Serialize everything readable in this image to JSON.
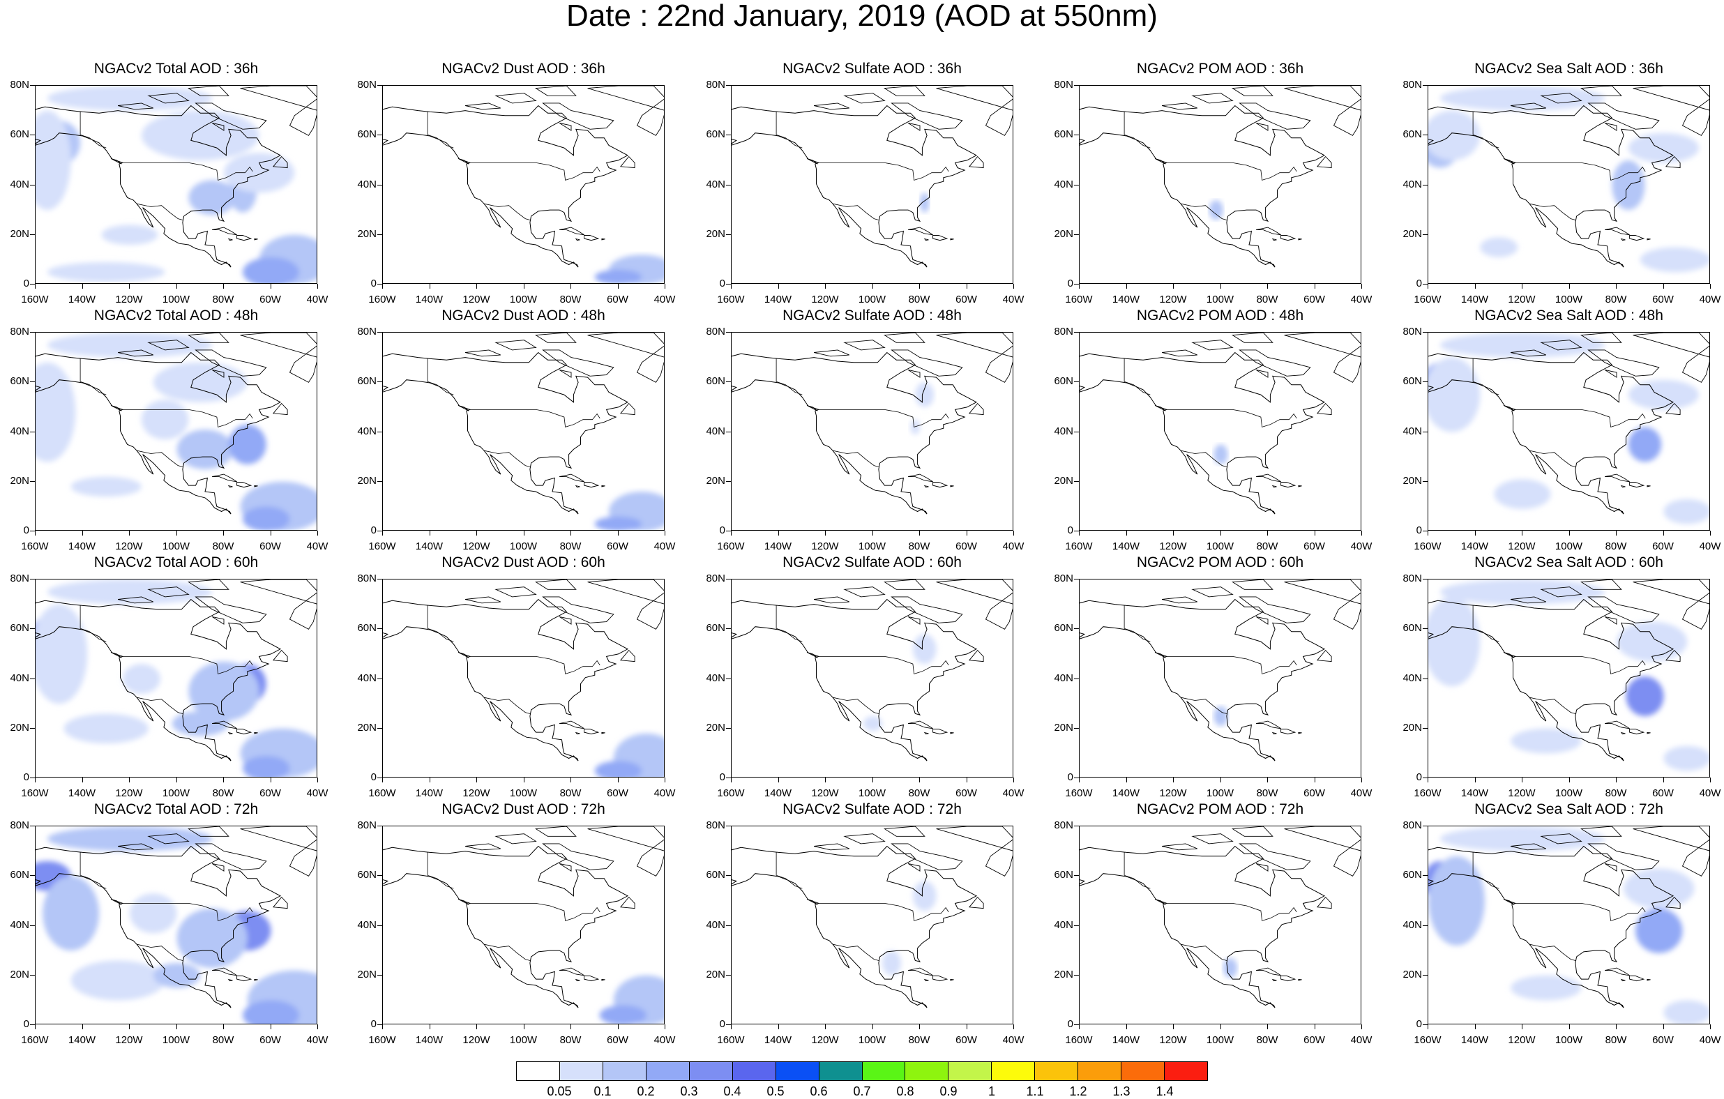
{
  "title": "Date : 22nd January, 2019 (AOD at 550nm)",
  "x_ticks": [
    "160W",
    "140W",
    "120W",
    "100W",
    "80W",
    "60W",
    "40W"
  ],
  "y_ticks": [
    "80N",
    "60N",
    "40N",
    "20N",
    "0"
  ],
  "columns": [
    {
      "key": "total",
      "titles": [
        "NGACv2 Total AOD : 36h",
        "NGACv2 Total AOD : 48h",
        "NGACv2 Total AOD : 60h",
        "NGACv2 Total AOD : 72h"
      ]
    },
    {
      "key": "dust",
      "titles": [
        "NGACv2 Dust AOD : 36h",
        "NGACv2 Dust AOD : 48h",
        "NGACv2 Dust AOD : 60h",
        "NGACv2 Dust AOD : 72h"
      ]
    },
    {
      "key": "sulfate",
      "titles": [
        "NGACv2 Sulfate AOD : 36h",
        "NGACv2 Sulfate AOD : 48h",
        "NGACv2 Sulfate AOD : 60h",
        "NGACv2 Sulfate AOD : 72h"
      ]
    },
    {
      "key": "pom",
      "titles": [
        "NGACv2 POM AOD : 36h",
        "NGACv2 POM AOD : 48h",
        "NGACv2 POM AOD : 60h",
        "NGACv2 POM AOD : 72h"
      ]
    },
    {
      "key": "seasalt",
      "titles": [
        "NGACv2 Sea Salt AOD : 36h",
        "NGACv2 Sea Salt AOD : 48h",
        "NGACv2 Sea Salt AOD : 60h",
        "NGACv2 Sea Salt  AOD : 72h"
      ]
    }
  ],
  "colorbar": {
    "colors": [
      "#ffffff",
      "#d6e0fb",
      "#b4c6f7",
      "#92a9f6",
      "#7d8ef2",
      "#5a66ee",
      "#0a50f5",
      "#0f9090",
      "#5af516",
      "#8ef40f",
      "#c3f54a",
      "#fdfb0a",
      "#fbc30a",
      "#fb9d0a",
      "#fb6c0a",
      "#fb1e10"
    ],
    "labels": [
      "0.05",
      "0.1",
      "0.2",
      "0.3",
      "0.4",
      "0.5",
      "0.6",
      "0.7",
      "0.8",
      "0.9",
      "1",
      "1.1",
      "1.2",
      "1.3",
      "1.4"
    ]
  }
}
